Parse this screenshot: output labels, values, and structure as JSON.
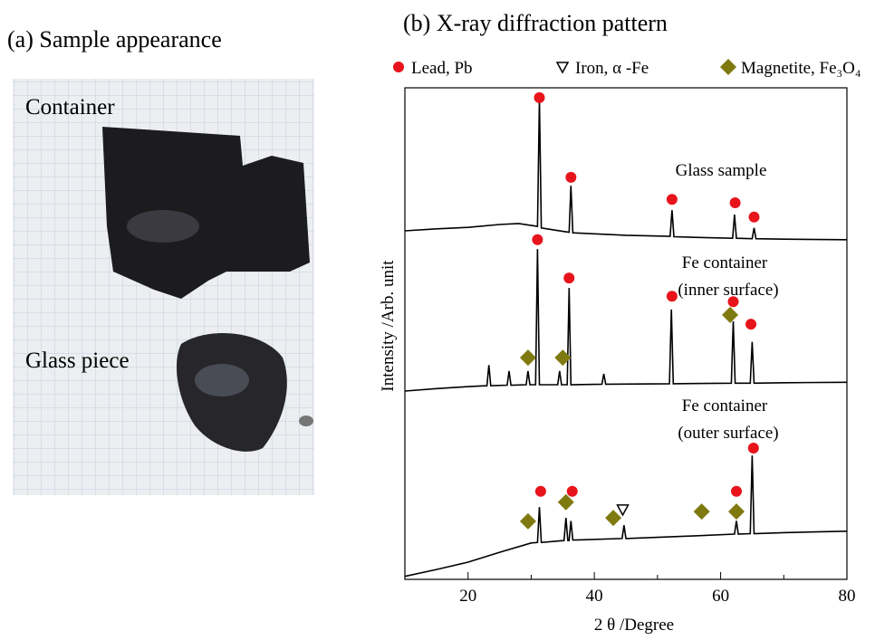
{
  "panel_a": {
    "title": "(a) Sample appearance",
    "labels": [
      "Container",
      "Glass piece"
    ]
  },
  "chart_data": {
    "type": "line",
    "title": "(b) X-ray diffraction pattern",
    "x_label": "2 θ /Degree",
    "y_label": "Intensity /Arb. unit",
    "xlim": [
      10,
      80
    ],
    "xticks": [
      20,
      40,
      60,
      80
    ],
    "xminorticks": [
      30,
      50,
      70
    ],
    "ylim": [
      0,
      100
    ],
    "series": [
      {
        "label": [
          "Glass sample"
        ],
        "color": "#000000",
        "x": [
          10,
          15,
          20,
          25,
          28,
          31,
          31.3,
          31.6,
          35,
          36,
          36.3,
          36.6,
          45,
          52,
          52.3,
          52.6,
          58,
          61.9,
          62.2,
          62.5,
          65,
          65.3,
          65.6,
          70,
          80
        ],
        "values": [
          70.9,
          71.3,
          71.6,
          72.2,
          72.4,
          71.8,
          97.6,
          71.5,
          70.8,
          70.6,
          80.1,
          70.5,
          70,
          69.8,
          75.1,
          69.7,
          69.5,
          69.4,
          74.2,
          69.4,
          69.3,
          71.5,
          69.3,
          69.2,
          69.1
        ]
      },
      {
        "label": [
          "Fe container",
          "(inner surface)"
        ],
        "color": "#000000",
        "x": [
          10,
          15,
          20,
          23,
          23.3,
          23.6,
          26.2,
          26.5,
          26.8,
          29.2,
          29.5,
          29.8,
          30.7,
          31,
          31.3,
          34.2,
          34.5,
          34.8,
          35.7,
          36,
          36.3,
          41.2,
          41.5,
          41.8,
          51.9,
          52.2,
          52.5,
          61.7,
          62,
          62.3,
          64.7,
          65,
          65.3,
          70,
          80
        ],
        "values": [
          38.3,
          38.8,
          39.2,
          39.4,
          43.6,
          39.4,
          39.5,
          42.4,
          39.5,
          39.6,
          42.4,
          39.6,
          39.6,
          67.2,
          39.6,
          39.6,
          42.4,
          39.6,
          39.6,
          59.3,
          39.6,
          39.7,
          41.8,
          39.7,
          39.8,
          54.9,
          39.8,
          39.9,
          52.5,
          39.9,
          39.9,
          48.3,
          39.9,
          40.0,
          40.1
        ]
      },
      {
        "label": [
          "Fe container",
          "(outer surface)"
        ],
        "color": "#000000",
        "x": [
          10,
          15,
          20,
          25,
          30,
          31,
          31.3,
          31.6,
          35.2,
          35.5,
          35.8,
          36,
          36.3,
          36.6,
          44.4,
          44.7,
          45,
          55,
          62.2,
          62.5,
          62.8,
          64.7,
          65,
          65.3,
          70,
          80
        ],
        "values": [
          0.6,
          2.0,
          3.5,
          5.5,
          7.4,
          7.5,
          14.7,
          7.5,
          7.9,
          12.5,
          7.9,
          7.9,
          11.9,
          8.0,
          8.3,
          11.0,
          8.3,
          8.8,
          9.2,
          11.9,
          9.2,
          9.3,
          25.2,
          9.3,
          9.5,
          9.8
        ]
      }
    ],
    "markers": [
      {
        "name": "Lead, Pb",
        "shape": "circle",
        "color": "#e8141c",
        "x": [
          31.3,
          36.3,
          52.3,
          62.3,
          65.3,
          31,
          36,
          52.3,
          62,
          64.8,
          31.5,
          36.5,
          62.5,
          65.2
        ],
        "values": [
          98.0,
          81.8,
          77.3,
          76.6,
          73.7,
          69.1,
          61.3,
          57.6,
          56.5,
          51.9,
          17.9,
          17.9,
          17.9,
          26.7
        ]
      },
      {
        "name": "Iron, α -Fe",
        "shape": "triangle",
        "color": "#000000",
        "x": [
          44.5
        ],
        "values": [
          14.2
        ]
      },
      {
        "name": "Magnetite, Fe₃O₄",
        "shape": "diamond",
        "color": "#7f7a0f",
        "x": [
          29.5,
          35,
          61.5,
          29.5,
          35.5,
          43,
          57,
          62.5
        ],
        "values": [
          45.1,
          45.1,
          53.8,
          11.8,
          15.7,
          12.5,
          13.8,
          13.8
        ]
      }
    ]
  }
}
